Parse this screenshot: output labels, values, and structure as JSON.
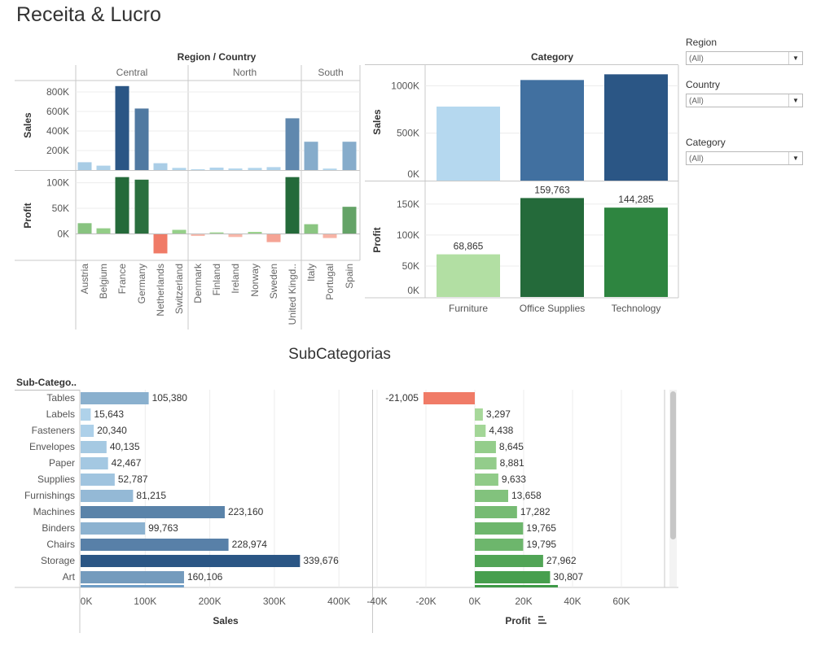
{
  "title": "Receita & Lucro",
  "filters": [
    {
      "label": "Region",
      "value": "(All)"
    },
    {
      "label": "Country",
      "value": "(All)"
    },
    {
      "label": "Category",
      "value": "(All)"
    }
  ],
  "chart_data": [
    {
      "id": "region-country",
      "type": "bar",
      "title": "Region / Country",
      "groups": [
        {
          "name": "Central",
          "countries": [
            "Austria",
            "Belgium",
            "France",
            "Germany",
            "Netherlands",
            "Switzerland"
          ]
        },
        {
          "name": "North",
          "countries": [
            "Denmark",
            "Finland",
            "Ireland",
            "Norway",
            "Sweden",
            "United Kingd.."
          ]
        },
        {
          "name": "South",
          "countries": [
            "Italy",
            "Portugal",
            "Spain"
          ]
        }
      ],
      "categories": [
        "Austria",
        "Belgium",
        "France",
        "Germany",
        "Netherlands",
        "Switzerland",
        "Denmark",
        "Finland",
        "Ireland",
        "Norway",
        "Sweden",
        "United Kingd..",
        "Italy",
        "Portugal",
        "Spain"
      ],
      "series": [
        {
          "name": "Sales",
          "values": [
            80000,
            45000,
            860000,
            630000,
            70000,
            22000,
            8000,
            25000,
            16000,
            22000,
            30000,
            530000,
            290000,
            15000,
            290000
          ],
          "ticks": [
            0,
            200000,
            400000,
            600000,
            800000
          ],
          "tick_labels": [
            "",
            "200K",
            "400K",
            "600K",
            "800K"
          ],
          "ylim": [
            0,
            900000
          ]
        },
        {
          "name": "Profit",
          "values": [
            21000,
            11000,
            111000,
            106000,
            -38000,
            8000,
            -4000,
            3000,
            -6000,
            4000,
            -16000,
            111000,
            19000,
            -8000,
            53000
          ],
          "ticks": [
            0,
            50000,
            100000
          ],
          "tick_labels": [
            "0K",
            "50K",
            "100K"
          ],
          "ylim": [
            -50000,
            120000
          ]
        }
      ]
    },
    {
      "id": "category",
      "type": "bar",
      "title": "Category",
      "categories": [
        "Furniture",
        "Office Supplies",
        "Technology"
      ],
      "series": [
        {
          "name": "Sales",
          "values": [
            780000,
            1060000,
            1120000
          ],
          "ticks": [
            0,
            500000,
            1000000
          ],
          "tick_labels": [
            "0K",
            "500K",
            "1000K"
          ],
          "ylim": [
            0,
            1200000
          ]
        },
        {
          "name": "Profit",
          "values": [
            68865,
            159763,
            144285
          ],
          "labels": [
            "68,865",
            "159,763",
            "144,285"
          ],
          "ticks": [
            0,
            50000,
            100000,
            150000
          ],
          "tick_labels": [
            "0K",
            "50K",
            "100K",
            "150K"
          ],
          "ylim": [
            0,
            180000
          ]
        }
      ]
    },
    {
      "id": "subcategorias",
      "type": "bar",
      "title": "SubCategorias",
      "row_header": "Sub-Catego..",
      "categories": [
        "Tables",
        "Labels",
        "Fasteners",
        "Envelopes",
        "Paper",
        "Supplies",
        "Furnishings",
        "Machines",
        "Binders",
        "Chairs",
        "Storage",
        "Art"
      ],
      "series": [
        {
          "name": "Sales",
          "values": [
            105380,
            15643,
            20340,
            40135,
            42467,
            52787,
            81215,
            223160,
            99763,
            228974,
            339676,
            160106
          ],
          "labels": [
            "105,380",
            "15,643",
            "20,340",
            "40,135",
            "42,467",
            "52,787",
            "81,215",
            "223,160",
            "99,763",
            "228,974",
            "339,676",
            "160,106"
          ],
          "ticks": [
            0,
            100000,
            200000,
            300000,
            400000
          ],
          "tick_labels": [
            "0K",
            "100K",
            "200K",
            "300K",
            "400K"
          ],
          "xlim": [
            0,
            460000
          ]
        },
        {
          "name": "Profit",
          "values": [
            -21005,
            3297,
            4438,
            8645,
            8881,
            9633,
            13658,
            17282,
            19765,
            19795,
            27962,
            30807
          ],
          "labels": [
            "-21,005",
            "3,297",
            "4,438",
            "8,645",
            "8,881",
            "9,633",
            "13,658",
            "17,282",
            "19,765",
            "19,795",
            "27,962",
            "30,807"
          ],
          "ticks": [
            -40000,
            -20000,
            0,
            20000,
            40000,
            60000
          ],
          "tick_labels": [
            "-40K",
            "-20K",
            "0K",
            "20K",
            "40K",
            "60K"
          ],
          "xlim": [
            -42000,
            78000
          ]
        }
      ]
    }
  ],
  "colors": {
    "blue_light": "#b5d8ef",
    "blue_dark": "#2b5685",
    "green_light": "#b2dfa3",
    "green_dark": "#246a3a",
    "negative": "#f07b67",
    "grid": "#ececec",
    "axis": "#c8c8c8",
    "text": "#555555"
  }
}
